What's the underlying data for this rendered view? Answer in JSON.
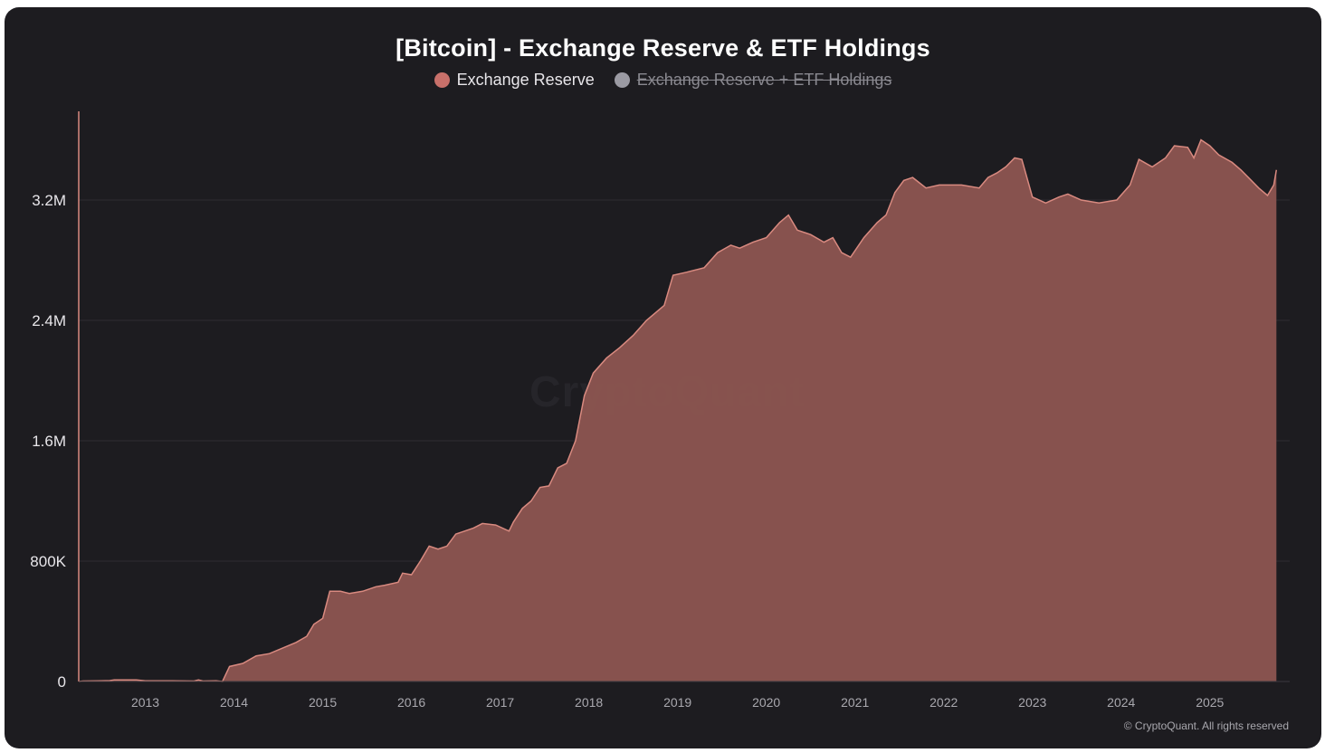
{
  "colors": {
    "background": "#1d1c20",
    "series_fill": "#8a5550",
    "series_line": "#d98a80",
    "legend_active": "#c8706a",
    "legend_inactive": "#9b9aa3",
    "grid": "#2e2d32",
    "axis": "#d98a80"
  },
  "watermark": "CryptoQuant",
  "credit": "© CryptoQuant. All rights reserved",
  "chart_data": {
    "type": "area",
    "title": "[Bitcoin] - Exchange Reserve & ETF Holdings",
    "legend": [
      {
        "name": "Exchange Reserve",
        "active": true
      },
      {
        "name": "Exchange Reserve + ETF Holdings",
        "active": false
      }
    ],
    "legend_position": "top-center",
    "xlabel": "",
    "ylabel": "",
    "ylim": [
      0,
      3600000
    ],
    "grid": true,
    "yticks": [
      {
        "value": 0,
        "label": "0"
      },
      {
        "value": 800000,
        "label": "800K"
      },
      {
        "value": 1600000,
        "label": "1.6M"
      },
      {
        "value": 2400000,
        "label": "2.4M"
      },
      {
        "value": 3200000,
        "label": "3.2M"
      }
    ],
    "xlim": [
      2012.25,
      2025.9
    ],
    "xticks": [
      "2013",
      "2014",
      "2015",
      "2016",
      "2017",
      "2018",
      "2019",
      "2020",
      "2021",
      "2022",
      "2023",
      "2024",
      "2025"
    ],
    "series": [
      {
        "name": "Exchange Reserve",
        "points": [
          [
            2012.25,
            0
          ],
          [
            2012.3,
            3000
          ],
          [
            2012.5,
            5000
          ],
          [
            2012.6,
            6000
          ],
          [
            2012.65,
            10000
          ],
          [
            2012.9,
            10000
          ],
          [
            2013.0,
            5000
          ],
          [
            2013.3,
            5000
          ],
          [
            2013.55,
            3000
          ],
          [
            2013.6,
            10000
          ],
          [
            2013.65,
            3000
          ],
          [
            2013.8,
            5000
          ],
          [
            2013.87,
            0
          ],
          [
            2013.95,
            100000
          ],
          [
            2014.1,
            120000
          ],
          [
            2014.25,
            170000
          ],
          [
            2014.4,
            185000
          ],
          [
            2014.5,
            210000
          ],
          [
            2014.7,
            260000
          ],
          [
            2014.82,
            300000
          ],
          [
            2014.9,
            380000
          ],
          [
            2015.0,
            420000
          ],
          [
            2015.08,
            600000
          ],
          [
            2015.2,
            600000
          ],
          [
            2015.3,
            585000
          ],
          [
            2015.45,
            600000
          ],
          [
            2015.6,
            630000
          ],
          [
            2015.7,
            640000
          ],
          [
            2015.85,
            660000
          ],
          [
            2015.9,
            720000
          ],
          [
            2016.0,
            710000
          ],
          [
            2016.1,
            800000
          ],
          [
            2016.2,
            900000
          ],
          [
            2016.3,
            880000
          ],
          [
            2016.4,
            900000
          ],
          [
            2016.5,
            980000
          ],
          [
            2016.6,
            1000000
          ],
          [
            2016.7,
            1020000
          ],
          [
            2016.8,
            1050000
          ],
          [
            2016.95,
            1040000
          ],
          [
            2017.1,
            1000000
          ],
          [
            2017.15,
            1060000
          ],
          [
            2017.25,
            1150000
          ],
          [
            2017.35,
            1200000
          ],
          [
            2017.45,
            1290000
          ],
          [
            2017.55,
            1300000
          ],
          [
            2017.65,
            1420000
          ],
          [
            2017.75,
            1450000
          ],
          [
            2017.85,
            1600000
          ],
          [
            2017.95,
            1900000
          ],
          [
            2018.05,
            2050000
          ],
          [
            2018.2,
            2150000
          ],
          [
            2018.35,
            2220000
          ],
          [
            2018.5,
            2300000
          ],
          [
            2018.65,
            2400000
          ],
          [
            2018.85,
            2500000
          ],
          [
            2018.95,
            2700000
          ],
          [
            2019.1,
            2720000
          ],
          [
            2019.3,
            2750000
          ],
          [
            2019.45,
            2850000
          ],
          [
            2019.6,
            2900000
          ],
          [
            2019.7,
            2880000
          ],
          [
            2019.85,
            2920000
          ],
          [
            2020.0,
            2950000
          ],
          [
            2020.15,
            3050000
          ],
          [
            2020.25,
            3100000
          ],
          [
            2020.35,
            3000000
          ],
          [
            2020.5,
            2970000
          ],
          [
            2020.65,
            2920000
          ],
          [
            2020.75,
            2950000
          ],
          [
            2020.85,
            2850000
          ],
          [
            2020.95,
            2820000
          ],
          [
            2021.1,
            2950000
          ],
          [
            2021.25,
            3050000
          ],
          [
            2021.35,
            3100000
          ],
          [
            2021.45,
            3250000
          ],
          [
            2021.55,
            3330000
          ],
          [
            2021.65,
            3350000
          ],
          [
            2021.8,
            3280000
          ],
          [
            2021.95,
            3300000
          ],
          [
            2022.2,
            3300000
          ],
          [
            2022.4,
            3280000
          ],
          [
            2022.5,
            3350000
          ],
          [
            2022.6,
            3380000
          ],
          [
            2022.7,
            3420000
          ],
          [
            2022.8,
            3480000
          ],
          [
            2022.88,
            3470000
          ],
          [
            2023.0,
            3220000
          ],
          [
            2023.15,
            3180000
          ],
          [
            2023.3,
            3220000
          ],
          [
            2023.4,
            3240000
          ],
          [
            2023.55,
            3200000
          ],
          [
            2023.75,
            3180000
          ],
          [
            2023.95,
            3200000
          ],
          [
            2024.1,
            3300000
          ],
          [
            2024.2,
            3470000
          ],
          [
            2024.35,
            3420000
          ],
          [
            2024.5,
            3480000
          ],
          [
            2024.6,
            3560000
          ],
          [
            2024.75,
            3550000
          ],
          [
            2024.82,
            3480000
          ],
          [
            2024.9,
            3600000
          ],
          [
            2025.0,
            3560000
          ],
          [
            2025.1,
            3500000
          ],
          [
            2025.25,
            3450000
          ],
          [
            2025.35,
            3400000
          ],
          [
            2025.45,
            3340000
          ],
          [
            2025.55,
            3280000
          ],
          [
            2025.65,
            3230000
          ],
          [
            2025.72,
            3300000
          ],
          [
            2025.75,
            3400000
          ]
        ]
      }
    ]
  }
}
